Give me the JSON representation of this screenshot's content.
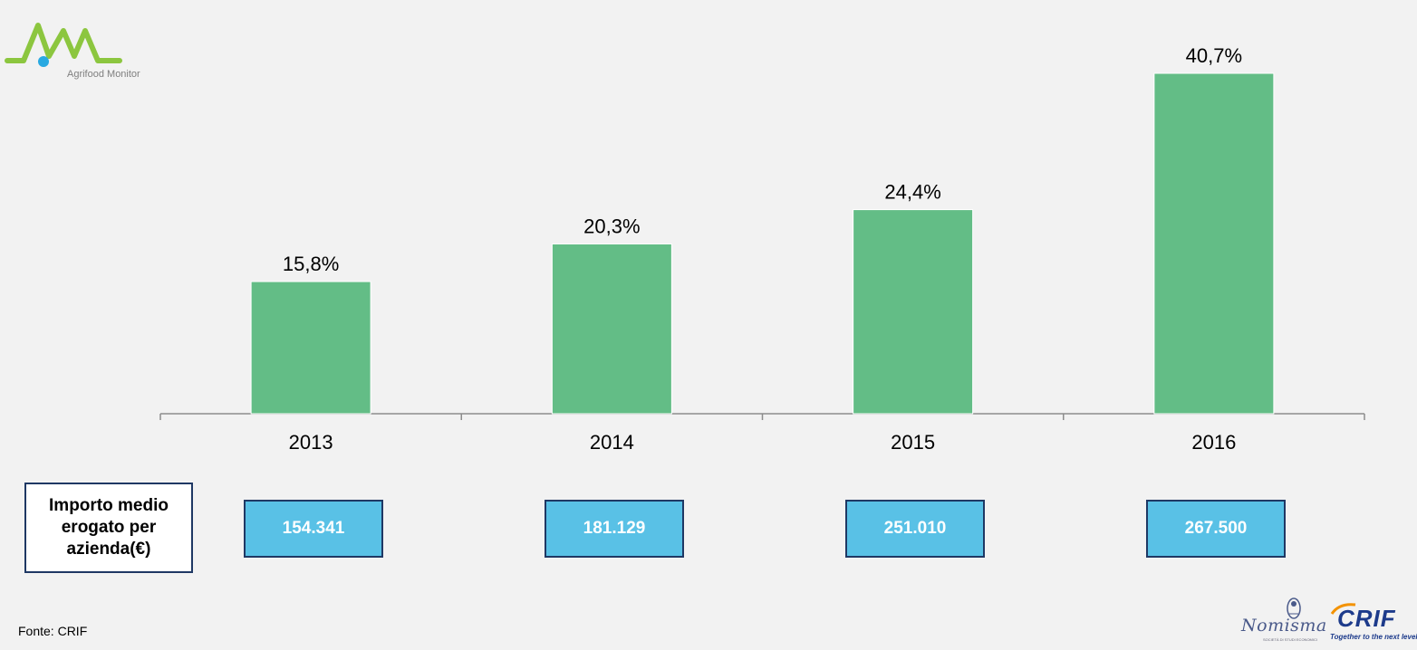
{
  "logo": {
    "brand_text": "Agrifood Monitor"
  },
  "chart_data": {
    "type": "bar",
    "categories": [
      "2013",
      "2014",
      "2015",
      "2016"
    ],
    "values": [
      15.8,
      20.3,
      24.4,
      40.7
    ],
    "value_labels": [
      "15,8%",
      "20,3%",
      "24,4%",
      "40,7%"
    ],
    "title": "",
    "xlabel": "",
    "ylabel": "",
    "ylim": [
      0,
      40.7
    ],
    "grid": false,
    "bar_color": "#63bd86"
  },
  "importo": {
    "label": "Importo medio erogato per azienda(€)",
    "values": [
      "154.341",
      "181.129",
      "251.010",
      "267.500"
    ]
  },
  "source": "Fonte: CRIF",
  "footer_logos": {
    "nomisma": "Nomisma",
    "nomisma_sub": "SOCIETÀ DI STUDI ECONOMICI",
    "crif": "CRIF",
    "crif_tagline": "Together to the next level"
  },
  "colors": {
    "box_fill": "#59c1e6",
    "box_border": "#1f3864",
    "logo_green": "#8cc63f",
    "logo_dot": "#29a9e1"
  }
}
